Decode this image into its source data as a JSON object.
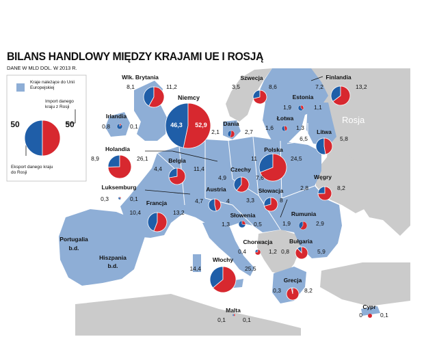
{
  "title": "BILANS HANDLOWY MIĘDZY KRAJAMI UE I ROSJĄ",
  "subtitle": "DANE W MLD DOL. W 2013 R.",
  "colors": {
    "eu": "#8eaed6",
    "other_land": "#cbcbcb",
    "sea": "#ffffff",
    "export": "#1f5ea8",
    "import": "#d7282f"
  },
  "legend": {
    "eu_label": "Kraje należące do Unii Europejskiej",
    "import_label": "Import danego kraju z Rosji",
    "export_label": "Eksport danego kraju do Rosji",
    "example_export": "50",
    "example_import": "50"
  },
  "russia_label": "Rosja",
  "countries": [
    {
      "id": "uk",
      "name": "Wlk. Brytania",
      "export": "8,1",
      "import": "11,2",
      "e": 8.1,
      "i": 11.2
    },
    {
      "id": "ireland",
      "name": "Irlandia",
      "export": "0,8",
      "import": "0,1",
      "e": 0.8,
      "i": 0.1
    },
    {
      "id": "germany",
      "name": "Niemcy",
      "export": "46,3",
      "import": "52,9",
      "e": 46.3,
      "i": 52.9
    },
    {
      "id": "sweden",
      "name": "Szwecja",
      "export": "3,5",
      "import": "8,6",
      "e": 3.5,
      "i": 8.6
    },
    {
      "id": "finland",
      "name": "Finlandia",
      "export": "7,2",
      "import": "13,2",
      "e": 7.2,
      "i": 13.2
    },
    {
      "id": "estonia",
      "name": "Estonia",
      "export": "1,9",
      "import": "1,1",
      "e": 1.9,
      "i": 1.1
    },
    {
      "id": "latvia",
      "name": "Łotwa",
      "export": "1,6",
      "import": "1,3",
      "e": 1.6,
      "i": 1.3
    },
    {
      "id": "lithuania",
      "name": "Litwa",
      "export": "6,5",
      "import": "5,8",
      "e": 6.5,
      "i": 5.8
    },
    {
      "id": "denmark",
      "name": "Dania",
      "export": "2,1",
      "import": "2,7",
      "e": 2.1,
      "i": 2.7
    },
    {
      "id": "netherlands",
      "name": "Holandia",
      "export": "8,9",
      "import": "26,1",
      "e": 8.9,
      "i": 26.1
    },
    {
      "id": "belgium",
      "name": "Belgia",
      "export": "4,4",
      "import": "11,4",
      "e": 4.4,
      "i": 11.4
    },
    {
      "id": "poland",
      "name": "Polska",
      "export": "11",
      "import": "24,5",
      "e": 11,
      "i": 24.5
    },
    {
      "id": "luxembourg",
      "name": "Luksemburg",
      "export": "0,3",
      "import": "0,1",
      "e": 0.3,
      "i": 0.1
    },
    {
      "id": "czechia",
      "name": "Czechy",
      "export": "4,9",
      "import": "7,6",
      "e": 4.9,
      "i": 7.6
    },
    {
      "id": "austria",
      "name": "Austria",
      "export": "4,7",
      "import": "4",
      "e": 4.7,
      "i": 4
    },
    {
      "id": "slovakia",
      "name": "Słowacja",
      "export": "3,3",
      "import": "8",
      "e": 3.3,
      "i": 8
    },
    {
      "id": "hungary",
      "name": "Węgry",
      "export": "2,8",
      "import": "8,2",
      "e": 2.8,
      "i": 8.2
    },
    {
      "id": "france",
      "name": "Francja",
      "export": "10,4",
      "import": "13,2",
      "e": 10.4,
      "i": 13.2
    },
    {
      "id": "slovenia",
      "name": "Słowenia",
      "export": "1,3",
      "import": "0,5",
      "e": 1.3,
      "i": 0.5
    },
    {
      "id": "romania",
      "name": "Rumunia",
      "export": "1,9",
      "import": "2,9",
      "e": 1.9,
      "i": 2.9
    },
    {
      "id": "portugal",
      "name": "Portugalia",
      "nodata": "b.d."
    },
    {
      "id": "spain",
      "name": "Hiszpania",
      "nodata": "b.d."
    },
    {
      "id": "croatia",
      "name": "Chorwacja",
      "export": "0,4",
      "import": "1,2",
      "e": 0.4,
      "i": 1.2
    },
    {
      "id": "bulgaria",
      "name": "Bułgaria",
      "export": "0,8",
      "import": "5,9",
      "e": 0.8,
      "i": 5.9
    },
    {
      "id": "italy",
      "name": "Włochy",
      "export": "14,4",
      "import": "25,5",
      "e": 14.4,
      "i": 25.5
    },
    {
      "id": "greece",
      "name": "Grecja",
      "export": "0,3",
      "import": "8,2",
      "e": 0.3,
      "i": 8.2
    },
    {
      "id": "malta",
      "name": "Malta",
      "export": "0,1",
      "import": "0,1",
      "e": 0.1,
      "i": 0.1
    },
    {
      "id": "cyprus",
      "name": "Cypr",
      "export": "0",
      "import": "0,1",
      "e": 0,
      "i": 0.1
    }
  ]
}
